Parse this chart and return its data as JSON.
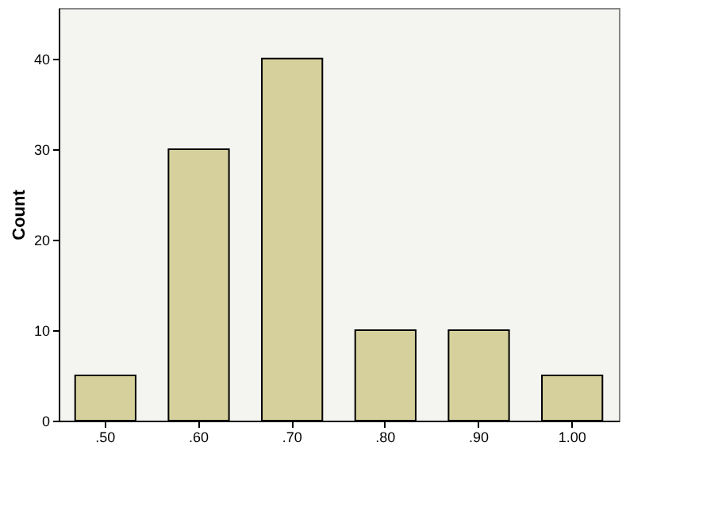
{
  "chart_data": {
    "type": "bar",
    "ylabel": "Count",
    "categories": [
      ".50",
      ".60",
      ".70",
      ".80",
      ".90",
      "1.00"
    ],
    "values": [
      5,
      30,
      40,
      10,
      10,
      5
    ],
    "color": "#d6d09c",
    "ylim": [
      0,
      45.6
    ],
    "yticks": [
      0,
      10,
      20,
      30,
      40
    ],
    "grid": false
  }
}
